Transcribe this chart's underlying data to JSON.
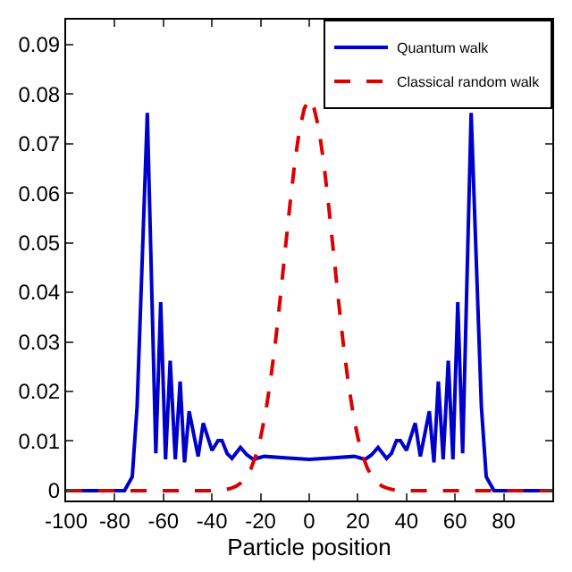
{
  "chart_data": {
    "type": "line",
    "xlabel": "Particle position",
    "xlim": [
      -100,
      100
    ],
    "xticks": [
      -100,
      -80,
      -60,
      -40,
      -20,
      0,
      20,
      40,
      60,
      80
    ],
    "ylim": [
      -0.002,
      0.095
    ],
    "yticks": [
      0,
      0.01,
      0.02,
      0.03,
      0.04,
      0.05,
      0.06,
      0.07,
      0.08,
      0.09
    ],
    "legend": "top right",
    "marker": "none",
    "series": [
      {
        "name": "Quantum walk",
        "color": "#0000cc",
        "line_style": "solid",
        "x": [
          -100,
          -76,
          -72.8,
          -70.8,
          -66.6,
          -63.1,
          -61.1,
          -59.1,
          -57.2,
          -55.1,
          -53.1,
          -51.3,
          -49.4,
          -45.7,
          -43.6,
          -40,
          -37.5,
          -35.9,
          -33.8,
          -31.8,
          -28.3,
          -25.6,
          -23,
          -18.5,
          -10,
          0,
          10,
          18.5,
          23,
          25.6,
          28.3,
          31.8,
          33.8,
          35.9,
          37.5,
          40,
          43.6,
          45.7,
          49.4,
          51.3,
          53.1,
          55.1,
          57.2,
          59.1,
          61.1,
          63.1,
          66.6,
          70.8,
          72.8,
          76,
          100
        ],
        "values": [
          0,
          0,
          0.0028,
          0.017,
          0.0762,
          0.0075,
          0.038,
          0.0063,
          0.0262,
          0.0063,
          0.022,
          0.0057,
          0.016,
          0.0069,
          0.0136,
          0.0081,
          0.0101,
          0.0101,
          0.0075,
          0.0065,
          0.0087,
          0.0072,
          0.0063,
          0.0069,
          0.0066,
          0.0063,
          0.0066,
          0.0069,
          0.0063,
          0.0072,
          0.0087,
          0.0065,
          0.0075,
          0.0101,
          0.0101,
          0.0081,
          0.0136,
          0.0069,
          0.016,
          0.0057,
          0.022,
          0.0063,
          0.0262,
          0.0063,
          0.038,
          0.0075,
          0.0762,
          0.017,
          0.0028,
          0,
          0
        ]
      },
      {
        "name": "Classical random walk",
        "color": "#dd0000",
        "line_style": "dashed",
        "x": [
          -100,
          -36,
          -32,
          -30,
          -28,
          -26,
          -24,
          -22,
          -20,
          -18,
          -16,
          -14,
          -12,
          -10,
          -8,
          -6,
          -4,
          -2,
          0,
          2,
          4,
          6,
          8,
          10,
          12,
          14,
          16,
          18,
          20,
          22,
          24,
          26,
          28,
          30,
          32,
          36,
          100
        ],
        "values": [
          0,
          0,
          0.0005,
          0.0009,
          0.0016,
          0.0027,
          0.0044,
          0.007,
          0.0107,
          0.0156,
          0.022,
          0.0296,
          0.0385,
          0.048,
          0.0574,
          0.066,
          0.0729,
          0.0771,
          0.079,
          0.0771,
          0.0729,
          0.066,
          0.0574,
          0.048,
          0.0385,
          0.0296,
          0.022,
          0.0156,
          0.0107,
          0.007,
          0.0044,
          0.0027,
          0.0016,
          0.0009,
          0.0005,
          0,
          0
        ]
      }
    ]
  }
}
